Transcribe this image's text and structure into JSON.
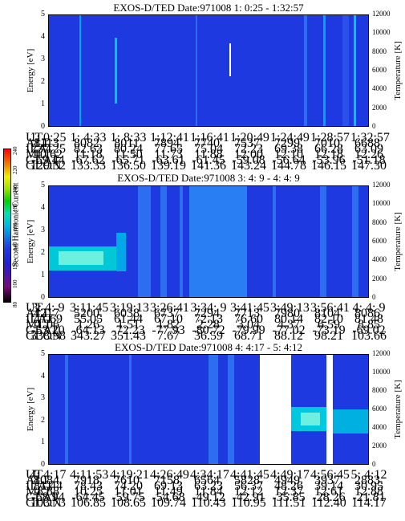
{
  "colorbar": {
    "title": "Second Harmonic Current",
    "ticks": [
      "80",
      "100",
      "120",
      "140",
      "160",
      "180",
      "200",
      "220",
      "240"
    ]
  },
  "ephemeris_labels": [
    "UT",
    "ALT",
    "ILAT",
    "MLT",
    "GLAT",
    "GLON"
  ],
  "chart_data": [
    {
      "type": "heatmap",
      "title": "EXOS-D/TED   Date:971008   1: 0:25 - 1:32:57",
      "ylabel": "Energy [eV]",
      "y2label": "Temperature [K]",
      "ylim": [
        0,
        5
      ],
      "y2lim": [
        0,
        12000
      ],
      "yticks": [
        "0",
        "1",
        "2",
        "3",
        "4",
        "5"
      ],
      "y2ticks": [
        "0",
        "2000",
        "4000",
        "6000",
        "8000",
        "10000",
        "12000"
      ],
      "ephemeris": [
        [
          "1: 0:25",
          "1: 4:33",
          "1: 8:33",
          "1:12:41",
          "1:16:41",
          "1:20:49",
          "1:24:49",
          "1:28:57",
          "1:32:57"
        ],
        [
          "8113.",
          "8082.",
          "8011.",
          "7894.",
          "7740.",
          "7537.",
          "7299.",
          "7010.",
          "6688."
        ],
        [
          "237.25",
          "82.63",
          "80.24",
          "77.65",
          "75.04",
          "72.23",
          "69.38",
          "66.28",
          "63.09"
        ],
        [
          "10.62",
          "11.18",
          "11.50",
          "11.73",
          "11.88",
          "12.00",
          "12.10",
          "12.18",
          "12.26"
        ],
        [
          "-69.44",
          "-67.62",
          "-65.71",
          "-63.61",
          "-61.45",
          "-59.08",
          "-56.64",
          "-53.96",
          "-51.18"
        ],
        [
          "129.32",
          "133.33",
          "136.50",
          "139.19",
          "141.36",
          "143.24",
          "144.78",
          "146.15",
          "147.30"
        ]
      ]
    },
    {
      "type": "heatmap",
      "title": "EXOS-D/TED   Date:971008   3: 4: 9 - 4: 4: 9",
      "ylabel": "Energy [eV]",
      "y2label": "Temperature [K]",
      "ylim": [
        0,
        5
      ],
      "y2lim": [
        0,
        12000
      ],
      "yticks": [
        "0",
        "1",
        "2",
        "3",
        "4",
        "5"
      ],
      "y2ticks": [
        "0",
        "2000",
        "4000",
        "6000",
        "8000",
        "10000",
        "12000"
      ],
      "ephemeris": [
        [
          "3: 4: 9",
          "3:11:45",
          "3:19:13",
          "3:26:41",
          "3:34: 9",
          "3:41:45",
          "3:49:13",
          "3:56:41",
          "4: 4: 9"
        ],
        [
          "4217.",
          "5200.",
          "6038.",
          "6737.",
          "7294.",
          "7713.",
          "7980.",
          "8104.",
          "8086."
        ],
        [
          "47.69",
          "55.05",
          "61.44",
          "67.10",
          "72.13",
          "76.60",
          "80.14",
          "82.10",
          "81.48"
        ],
        [
          "1.06",
          "1.26",
          "1.51",
          "1.82",
          "2.28",
          "3.04",
          "4.37",
          "6.59",
          "8.85"
        ],
        [
          "-53.20",
          "-64.13",
          "-72.23",
          "-77.93",
          "-80.72",
          "-79.99",
          "-77.02",
          "-73.19",
          "-69.02"
        ],
        [
          "338.98",
          "343.27",
          "351.43",
          "7.67",
          "36.59",
          "68.71",
          "88.12",
          "98.21",
          "103.66"
        ]
      ]
    },
    {
      "type": "heatmap",
      "title": "EXOS-D/TED   Date:971008   4: 4:17 - 5: 4:12",
      "ylabel": "Energy [eV]",
      "y2label": "Temperature [K]",
      "ylim": [
        0,
        5
      ],
      "y2lim": [
        0,
        12000
      ],
      "yticks": [
        "0",
        "1",
        "2",
        "3",
        "4",
        "5"
      ],
      "y2ticks": [
        "0",
        "2000",
        "4000",
        "6000",
        "8000",
        "10000",
        "12000"
      ],
      "ephemeris": [
        [
          "4: 4:17",
          "4:11:53",
          "4:19:21",
          "4:26:49",
          "4:34:17",
          "4:41:45",
          "4:49:17",
          "4:56:45",
          "5: 4:12"
        ],
        [
          "8084.",
          "7918.",
          "7610.",
          "7158.",
          "6564.",
          "5828.",
          "4949.",
          "3937.",
          "2883."
        ],
        [
          "81.44",
          "78.43",
          "74.20",
          "69.13",
          "63.23",
          "56.37",
          "48.26",
          "39.14",
          "30.95"
        ],
        [
          "8.88",
          "10.25",
          "11.01",
          "11.49",
          "11.84",
          "12.12",
          "12.37",
          "12.61",
          "12.88"
        ],
        [
          "-68.94",
          "-64.45",
          "-59.75",
          "-54.68",
          "-49.12",
          "-42.91",
          "-35.85",
          "-28.26",
          "-21.81"
        ],
        [
          "103.73",
          "106.85",
          "108.65",
          "109.74",
          "110.43",
          "110.95",
          "111.51",
          "112.40",
          "114.17"
        ]
      ]
    }
  ]
}
